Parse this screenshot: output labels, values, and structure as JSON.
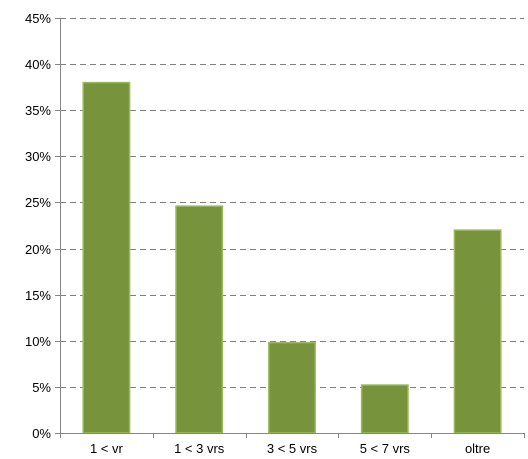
{
  "chart_data": {
    "type": "bar",
    "categories": [
      "1 < vr",
      "1 < 3 vrs",
      "3 < 5 vrs",
      "5 < 7 vrs",
      "oltre"
    ],
    "values": [
      38,
      24.6,
      9.8,
      5.2,
      22
    ],
    "ylim": [
      0,
      45
    ],
    "yticks": [
      0,
      5,
      10,
      15,
      20,
      25,
      30,
      35,
      40,
      45
    ],
    "ytick_labels": [
      "0%",
      "5%",
      "10%",
      "15%",
      "20%",
      "25%",
      "30%",
      "35%",
      "40%",
      "45%"
    ],
    "grid": "horizontal dashed",
    "legend": "none",
    "colors": {
      "bar_fill": "#77933c",
      "bar_stroke": "#9bbb59",
      "grid": "#808080",
      "axis": "#868686"
    }
  }
}
